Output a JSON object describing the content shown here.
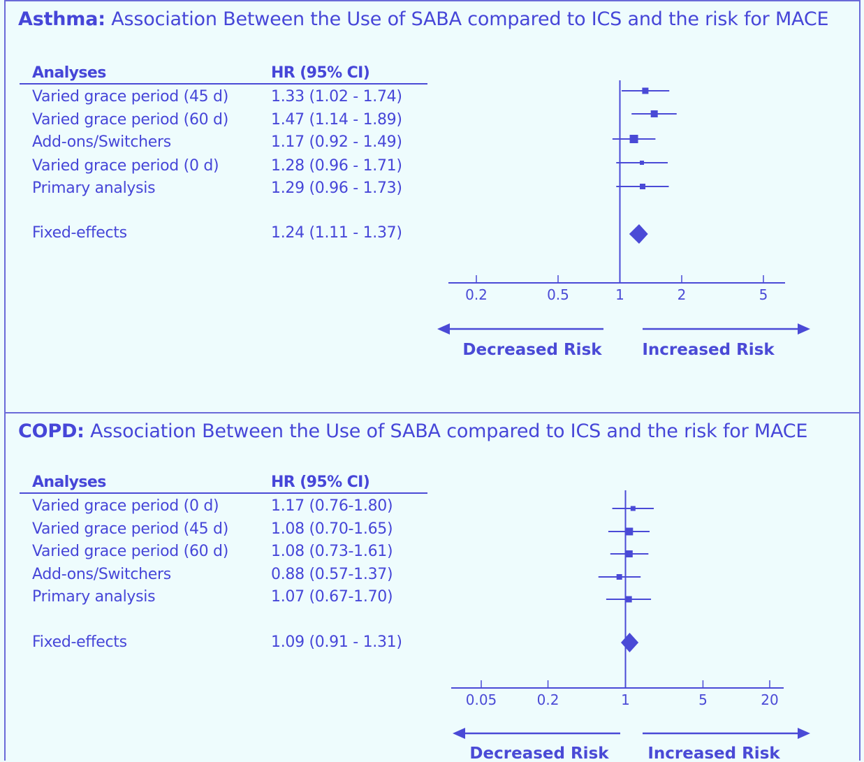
{
  "colors": {
    "background": "#eefcfd",
    "ink": "#4a4ad6",
    "border": "#6a6ad8"
  },
  "chart_data": [
    {
      "type": "forest",
      "title_lead": "Asthma:",
      "title_rest": " Association Between the Use of SABA compared to ICS and the risk for MACE",
      "col_analyses": "Analyses",
      "col_hr": "HR (95% CI)",
      "rows": [
        {
          "label": "Varied grace period (45 d)",
          "ci_text": "1.33 (1.02 - 1.74)",
          "hr": 1.33,
          "lo": 1.02,
          "hi": 1.74
        },
        {
          "label": "Varied grace period (60 d)",
          "ci_text": "1.47 (1.14 - 1.89)",
          "hr": 1.47,
          "lo": 1.14,
          "hi": 1.89
        },
        {
          "label": "Add-ons/Switchers",
          "ci_text": "1.17 (0.92 - 1.49)",
          "hr": 1.17,
          "lo": 0.92,
          "hi": 1.49
        },
        {
          "label": "Varied grace period (0 d)",
          "ci_text": "1.28 (0.96 - 1.71)",
          "hr": 1.28,
          "lo": 0.96,
          "hi": 1.71
        },
        {
          "label": "Primary analysis",
          "ci_text": "1.29 (0.96 - 1.73)",
          "hr": 1.29,
          "lo": 0.96,
          "hi": 1.73
        }
      ],
      "pooled": {
        "label": "Fixed-effects",
        "ci_text": "1.24 (1.11 - 1.37)",
        "hr": 1.24,
        "lo": 1.11,
        "hi": 1.37
      },
      "x_scale": "log",
      "x_ticks": [
        0.2,
        0.5,
        1,
        2,
        5
      ],
      "x_tick_labels": [
        "0.2",
        "0.5",
        "1",
        "2",
        "5"
      ],
      "decreased_label": "Decreased Risk",
      "increased_label": "Increased Risk"
    },
    {
      "type": "forest",
      "title_lead": "COPD:",
      "title_rest": " Association Between the Use of SABA compared to ICS and the risk for MACE",
      "col_analyses": "Analyses",
      "col_hr": "HR (95% CI)",
      "rows": [
        {
          "label": "Varied grace period (0 d)",
          "ci_text": "1.17 (0.76-1.80)",
          "hr": 1.17,
          "lo": 0.76,
          "hi": 1.8
        },
        {
          "label": "Varied grace period (45 d)",
          "ci_text": "1.08 (0.70-1.65)",
          "hr": 1.08,
          "lo": 0.7,
          "hi": 1.65
        },
        {
          "label": "Varied grace period (60 d)",
          "ci_text": "1.08 (0.73-1.61)",
          "hr": 1.08,
          "lo": 0.73,
          "hi": 1.61
        },
        {
          "label": "Add-ons/Switchers",
          "ci_text": "0.88 (0.57-1.37)",
          "hr": 0.88,
          "lo": 0.57,
          "hi": 1.37
        },
        {
          "label": "Primary analysis",
          "ci_text": "1.07 (0.67-1.70)",
          "hr": 1.07,
          "lo": 0.67,
          "hi": 1.7
        }
      ],
      "pooled": {
        "label": "Fixed-effects",
        "ci_text": "1.09 (0.91 - 1.31)",
        "hr": 1.09,
        "lo": 0.91,
        "hi": 1.31
      },
      "x_scale": "log",
      "x_ticks": [
        0.05,
        0.2,
        1,
        5,
        20
      ],
      "x_tick_labels": [
        "0.05",
        "0.2",
        "1",
        "5",
        "20"
      ],
      "decreased_label": "Decreased Risk",
      "increased_label": "Increased Risk"
    }
  ]
}
